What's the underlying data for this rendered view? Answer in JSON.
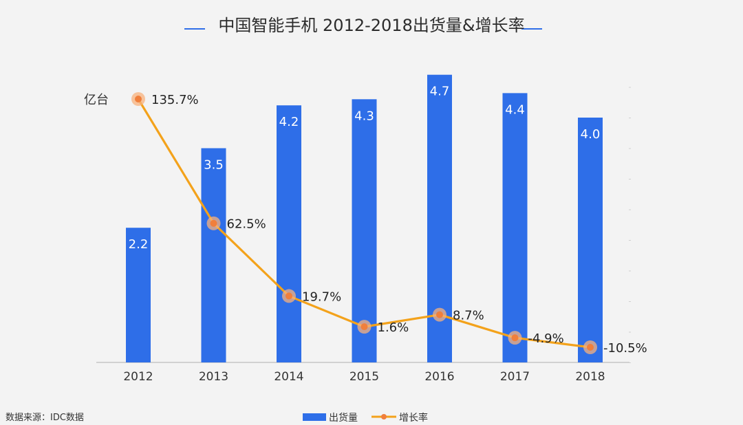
{
  "source": "数据来源：IDC数据",
  "colors": {
    "bar": "#2e6ee8",
    "bar_label": "#ffffff",
    "line": "#f3a21b",
    "marker": "#f07f3c",
    "marker_halo": "#f8b17c",
    "axis": "#bdbdbd",
    "title_rule": "#2e6ee8"
  },
  "chart_data": {
    "type": "bar",
    "title": "中国智能手机 2012-2018出货量&增长率",
    "ylabel": "亿台",
    "categories": [
      "2012",
      "2013",
      "2014",
      "2015",
      "2016",
      "2017",
      "2018"
    ],
    "series": [
      {
        "name": "出货量",
        "type": "bar",
        "values": [
          2.2,
          3.5,
          4.2,
          4.3,
          4.7,
          4.4,
          4.0
        ],
        "labels": [
          "2.2",
          "3.5",
          "4.2",
          "4.3",
          "4.7",
          "4.4",
          "4.0"
        ]
      },
      {
        "name": "增长率",
        "type": "line",
        "values": [
          135.7,
          62.5,
          19.7,
          1.6,
          8.7,
          -4.9,
          -10.5
        ],
        "labels": [
          "135.7%",
          "62.5%",
          "19.7%",
          "1.6%",
          "8.7%",
          "-4.9%",
          "-10.5%"
        ]
      }
    ],
    "legend_position": "bottom",
    "grid": false
  }
}
